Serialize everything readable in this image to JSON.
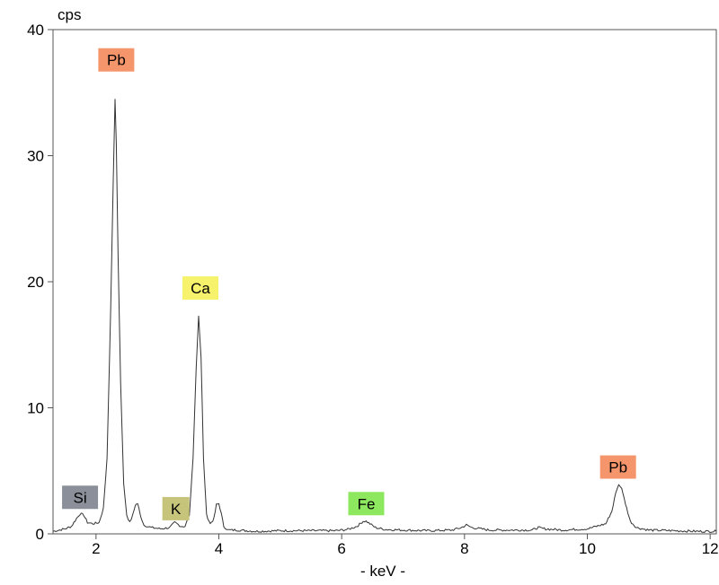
{
  "chart_data": {
    "type": "line",
    "ylabel": "cps",
    "xlabel": "- keV -",
    "xlim": [
      1.3,
      12.1
    ],
    "ylim": [
      0,
      40
    ],
    "xticks": [
      2,
      4,
      6,
      8,
      10,
      12
    ],
    "yticks": [
      0,
      10,
      20,
      30,
      40
    ],
    "grid": false,
    "series": [
      {
        "x": [
          1.3,
          1.5,
          1.6,
          1.68,
          1.74,
          1.8,
          1.86,
          1.95,
          2.05,
          2.12,
          2.18,
          2.24,
          2.28,
          2.31,
          2.33,
          2.36,
          2.4,
          2.45,
          2.5,
          2.55,
          2.6,
          2.64,
          2.68,
          2.72,
          2.78,
          2.9,
          3.05,
          3.2,
          3.28,
          3.32,
          3.38,
          3.45,
          3.52,
          3.58,
          3.63,
          3.67,
          3.71,
          3.75,
          3.8,
          3.86,
          3.92,
          3.96,
          4.0,
          4.04,
          4.08,
          4.15,
          4.3,
          4.6,
          5.0,
          5.5,
          5.9,
          6.1,
          6.25,
          6.35,
          6.4,
          6.46,
          6.55,
          6.7,
          7.0,
          7.4,
          7.8,
          7.95,
          8.03,
          8.12,
          8.4,
          8.8,
          9.1,
          9.2,
          9.3,
          9.6,
          10.0,
          10.3,
          10.4,
          10.46,
          10.51,
          10.56,
          10.62,
          10.7,
          10.8,
          11.0,
          11.4,
          11.8,
          12.1
        ],
        "values": [
          0.2,
          0.4,
          0.6,
          1.2,
          1.6,
          1.5,
          0.9,
          0.8,
          0.9,
          2.0,
          6.0,
          18.0,
          28.0,
          34.5,
          31.0,
          22.0,
          12.0,
          4.0,
          1.5,
          0.9,
          1.5,
          2.3,
          2.4,
          1.5,
          0.7,
          0.5,
          0.4,
          0.5,
          0.9,
          0.8,
          0.6,
          0.6,
          1.5,
          6.0,
          13.0,
          17.3,
          14.0,
          6.0,
          1.5,
          0.8,
          1.2,
          2.3,
          2.4,
          1.6,
          0.6,
          0.3,
          0.3,
          0.2,
          0.25,
          0.25,
          0.25,
          0.35,
          0.6,
          1.0,
          1.0,
          0.8,
          0.5,
          0.35,
          0.3,
          0.25,
          0.3,
          0.5,
          0.7,
          0.5,
          0.3,
          0.3,
          0.3,
          0.5,
          0.4,
          0.3,
          0.4,
          0.8,
          1.8,
          3.2,
          3.9,
          3.6,
          2.4,
          1.0,
          0.5,
          0.3,
          0.25,
          0.2,
          0.2
        ]
      }
    ],
    "annotations": [
      {
        "text": "Pb",
        "x": 2.33,
        "y": 37.6,
        "color": "#f4956b"
      },
      {
        "text": "Ca",
        "x": 3.7,
        "y": 19.5,
        "color": "#f7f26b"
      },
      {
        "text": "Si",
        "x": 1.74,
        "y": 2.9,
        "color": "#8b8f99"
      },
      {
        "text": "K",
        "x": 3.3,
        "y": 2.0,
        "color": "#c6c37b"
      },
      {
        "text": "Fe",
        "x": 6.4,
        "y": 2.4,
        "color": "#8de85f"
      },
      {
        "text": "Pb",
        "x": 10.5,
        "y": 5.3,
        "color": "#f4956b"
      }
    ]
  }
}
